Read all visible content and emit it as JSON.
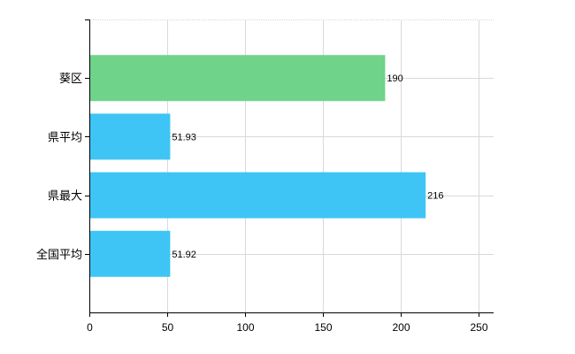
{
  "chart_data": {
    "type": "bar",
    "orientation": "horizontal",
    "categories": [
      "葵区",
      "県平均",
      "県最大",
      "全国平均"
    ],
    "values": [
      190,
      51.93,
      216,
      51.92
    ],
    "data_labels": [
      "190",
      "51.93",
      "216",
      "51.92"
    ],
    "bar_colors": [
      "#6fd38a",
      "#3ec5f5",
      "#3ec5f5",
      "#3ec5f5"
    ],
    "xlim": [
      0,
      250
    ],
    "x_ticks": [
      0,
      50,
      100,
      150,
      200,
      250
    ],
    "x_tick_labels": [
      "0",
      "50",
      "100",
      "150",
      "200",
      "250"
    ],
    "grid": true,
    "title": "",
    "xlabel": "",
    "ylabel": ""
  }
}
